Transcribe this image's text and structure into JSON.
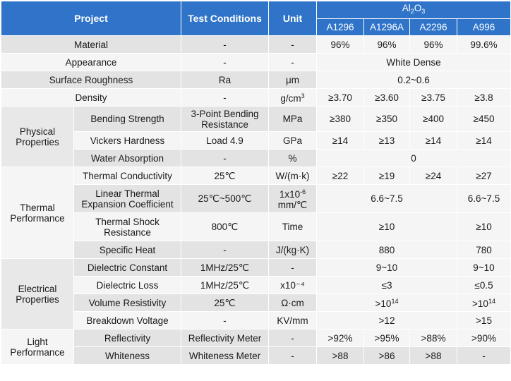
{
  "header": {
    "project": "Project",
    "test_conditions": "Test Conditions",
    "unit": "Unit",
    "material_main": "Al",
    "material_sub1": "2",
    "material_mid": "O",
    "material_sub2": "3",
    "grades": [
      "A1296",
      "A1296A",
      "A2296",
      "A996"
    ]
  },
  "groups": {
    "physical": "Physical Properties",
    "thermal": "Thermal Performance",
    "electrical": "Electrical Properties",
    "light": "Light Performance"
  },
  "rows": {
    "material": {
      "name": "Material",
      "cond": "-",
      "unit": "-",
      "v": [
        "96%",
        "96%",
        "96%",
        "99.6%"
      ]
    },
    "appearance": {
      "name": "Appearance",
      "cond": "-",
      "unit": "-",
      "v_all": "White Dense"
    },
    "roughness": {
      "name": "Surface Roughness",
      "cond": "Ra",
      "unit": "μm",
      "v_all": "0.2~0.6"
    },
    "density": {
      "name": "Density",
      "cond": "-",
      "unit_main": "g/cm",
      "unit_sup": "3",
      "v": [
        "≥3.70",
        "≥3.60",
        "≥3.75",
        "≥3.8"
      ]
    },
    "bending": {
      "name": "Bending Strength",
      "cond": "3-Point Bending Resistance",
      "unit": "MPa",
      "v": [
        "≥380",
        "≥350",
        "≥400",
        "≥450"
      ]
    },
    "vickers": {
      "name": "Vickers Hardness",
      "cond": "Load 4.9",
      "unit": "GPa",
      "v": [
        "≥14",
        "≥13",
        "≥14",
        "≥14"
      ]
    },
    "water": {
      "name": "Water Absorption",
      "cond": "-",
      "unit": "%",
      "v_all": "0"
    },
    "conductivity": {
      "name": "Thermal Conductivity",
      "cond": "25℃",
      "unit": "W/(m·k)",
      "v": [
        "≥22",
        "≥19",
        "≥24",
        "≥27"
      ]
    },
    "expansion": {
      "name": "Linear Thermal Expansion Coefficient",
      "cond": "25℃~500℃",
      "unit_main": "1x10",
      "unit_sup": "-6",
      "unit_line2": "mm/℃",
      "v_first3": "6.6~7.5",
      "v_last": "6.6~7.5"
    },
    "shock": {
      "name": "Thermal Shock Resistance",
      "cond": "800℃",
      "unit": "Time",
      "v_first3": "≥10",
      "v_last": "≥10"
    },
    "specific_heat": {
      "name": "Specific Heat",
      "cond": "-",
      "unit": "J/(kg·K)",
      "v_first3": "880",
      "v_last": "780"
    },
    "dielectric_const": {
      "name": "Dielectric Constant",
      "cond": "1MHz/25℃",
      "unit": "-",
      "v_first3": "9~10",
      "v_last": "9~10"
    },
    "dielectric_loss": {
      "name": "Dielectric Loss",
      "cond": "1MHz/25℃",
      "unit": "x10⁻⁴",
      "v_first3": "≤3",
      "v_last": "≤0.5"
    },
    "resistivity": {
      "name": "Volume Resistivity",
      "cond": "25℃",
      "unit": "Ω·cm",
      "v_first3_main": ">10",
      "v_first3_sup": "14",
      "v_last_main": ">10",
      "v_last_sup": "14"
    },
    "breakdown": {
      "name": "Breakdown Voltage",
      "cond": "-",
      "unit": "KV/mm",
      "v_first3": ">12",
      "v_last": ">15"
    },
    "reflectivity": {
      "name": "Reflectivity",
      "cond": "Reflectivity Meter",
      "unit": "-",
      "v": [
        ">92%",
        ">95%",
        ">88%",
        ">90%"
      ]
    },
    "whiteness": {
      "name": "Whiteness",
      "cond": "Whiteness Meter",
      "unit": "-",
      "v": [
        ">88",
        ">86",
        ">88",
        "-"
      ]
    }
  }
}
